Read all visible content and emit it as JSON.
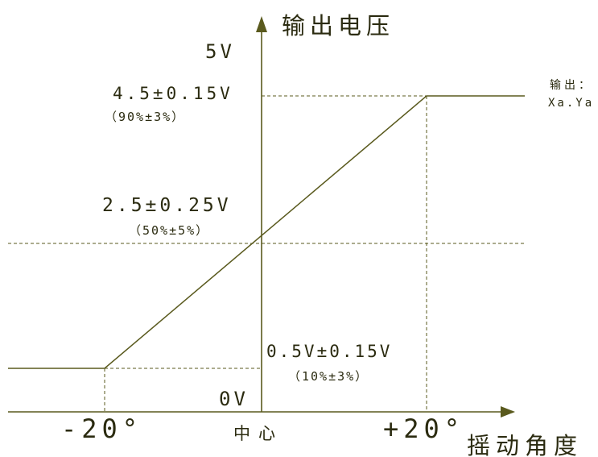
{
  "diagram": {
    "y_axis_title": "输出电压",
    "y_top_label": "5V",
    "y_zero_label": "0V",
    "x_axis_title": "摇动角度",
    "x_left_label": "-20°",
    "x_center_label": "中心",
    "x_right_label": "+20°",
    "high_level": {
      "value": "4.5±0.15V",
      "percent": "（90%±3%）"
    },
    "mid_level": {
      "value": "2.5±0.25V",
      "percent": "（50%±5%）"
    },
    "low_level": {
      "value": "0.5V±0.15V",
      "percent": "（10%±3%）"
    },
    "output_note_line1": "输出：",
    "output_note_line2": "Xa.Ya"
  },
  "colors": {
    "line": "#5a5a1e",
    "text": "#2b2b10",
    "background": "#ffffff"
  }
}
